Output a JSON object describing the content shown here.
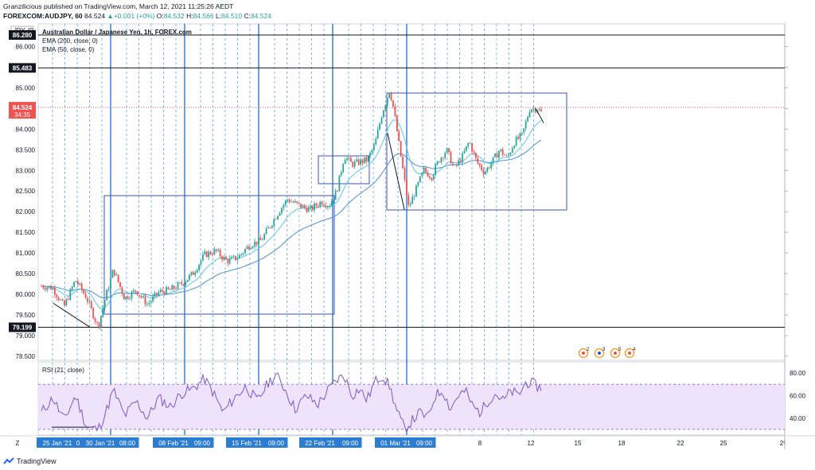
{
  "header": {
    "line1": "Granzilicious published on TradingView.com, March 12, 2021 11:25:26 AEDT",
    "symbol": "FOREXCOM:AUDJPY, 60",
    "last": "84.524",
    "change_arrow": "▲",
    "change": "+0.001 (+0%)",
    "o_label": "O:",
    "o": "84.532",
    "h_label": "H:",
    "h": "84.566",
    "l_label": "L:",
    "l": "84.510",
    "c_label": "C:",
    "c": "84.524"
  },
  "legend": {
    "title": "Australian Dollar / Japanese Yen, 1h, FOREX.com",
    "ema200": "EMA (200, close, 0)",
    "ema50": "EMA (50, close, 0)",
    "rsi": "RSI (21, close)"
  },
  "price_axis": {
    "currency": "JPY",
    "currency_tag": "I0",
    "marker_high": "86.280",
    "marker_mid": "85.483",
    "marker_low": "79.199",
    "current_price": "84.524",
    "countdown": "34:35"
  },
  "rsi_axis": {
    "ticks": [
      "80.00",
      "60.00",
      "40.00"
    ]
  },
  "colors": {
    "up": "#26a69a",
    "down": "#ef5350",
    "ema50": "#5ec8e0",
    "ema200": "#4d8fd6",
    "rsi": "#7e57c2",
    "rsi_band": "#efe3fb",
    "box": "#3f51b5",
    "vline": "#2b7cd3",
    "vline_dashed": "#3b8fd6",
    "price_tag": "#ef5350",
    "hline": "#131722"
  },
  "events": [
    "2",
    "3",
    "5",
    "4"
  ],
  "footer": {
    "brand": "TradingView"
  },
  "chart_data": {
    "type": "candlestick",
    "title": "Australian Dollar / Japanese Yen, 1h, FOREX.com",
    "y_ticks": [
      86.0,
      85.5,
      85.0,
      84.5,
      84.0,
      83.5,
      83.0,
      82.5,
      82.0,
      81.5,
      81.0,
      80.5,
      80.0,
      79.5,
      79.0,
      78.5
    ],
    "ylim": [
      78.4,
      86.55
    ],
    "x_ticks": [
      {
        "label": "Z",
        "highlight": false
      },
      {
        "label": "25 Jan '21",
        "highlight": true
      },
      {
        "label": "0⁽",
        "highlight": true
      },
      {
        "label": "30 Jan '21",
        "highlight": true
      },
      {
        "label": "08:00",
        "highlight": true
      },
      {
        "label": "08 Feb '21",
        "highlight": true
      },
      {
        "label": "09:00",
        "highlight": true
      },
      {
        "label": "15 Feb '21",
        "highlight": true
      },
      {
        "label": "09:00",
        "highlight": true
      },
      {
        "label": "22 Feb '21",
        "highlight": true
      },
      {
        "label": "09:00",
        "highlight": true
      },
      {
        "label": "01 Mar '21",
        "highlight": true
      },
      {
        "label": "09:00",
        "highlight": true
      },
      {
        "label": "8",
        "highlight": false
      },
      {
        "label": "12",
        "highlight": false
      },
      {
        "label": "15",
        "highlight": false
      },
      {
        "label": "18",
        "highlight": false
      },
      {
        "label": "22",
        "highlight": false
      },
      {
        "label": "25",
        "highlight": false
      },
      {
        "label": "2⁽",
        "highlight": false
      }
    ],
    "horizontal_levels": [
      86.28,
      85.483,
      79.199
    ],
    "current_price": 84.524,
    "price_path": [
      [
        0,
        80.2
      ],
      [
        3,
        80.15
      ],
      [
        6,
        79.7
      ],
      [
        9,
        80.35
      ],
      [
        12,
        79.9
      ],
      [
        15,
        79.2
      ],
      [
        17,
        79.95
      ],
      [
        19,
        80.6
      ],
      [
        22,
        79.9
      ],
      [
        25,
        80.1
      ],
      [
        28,
        79.75
      ],
      [
        31,
        80.05
      ],
      [
        34,
        80.1
      ],
      [
        37,
        80.25
      ],
      [
        40,
        80.5
      ],
      [
        43,
        80.95
      ],
      [
        46,
        81.05
      ],
      [
        49,
        80.8
      ],
      [
        52,
        80.9
      ],
      [
        55,
        81.2
      ],
      [
        58,
        81.3
      ],
      [
        61,
        81.75
      ],
      [
        63,
        82.05
      ],
      [
        65,
        82.3
      ],
      [
        68,
        82.15
      ],
      [
        71,
        82.05
      ],
      [
        74,
        82.25
      ],
      [
        76,
        82.15
      ],
      [
        78,
        82.5
      ],
      [
        80,
        83.35
      ],
      [
        82,
        83.15
      ],
      [
        84,
        83.2
      ],
      [
        86,
        83.25
      ],
      [
        88,
        83.6
      ],
      [
        90,
        84.4
      ],
      [
        92,
        84.95
      ],
      [
        93,
        84.5
      ],
      [
        95,
        83.3
      ],
      [
        97,
        82.1
      ],
      [
        99,
        82.55
      ],
      [
        101,
        83.0
      ],
      [
        103,
        82.85
      ],
      [
        105,
        83.25
      ],
      [
        107,
        83.5
      ],
      [
        109,
        83.05
      ],
      [
        111,
        83.3
      ],
      [
        113,
        83.7
      ],
      [
        115,
        83.2
      ],
      [
        117,
        82.95
      ],
      [
        119,
        83.2
      ],
      [
        121,
        83.5
      ],
      [
        123,
        83.3
      ],
      [
        125,
        83.7
      ],
      [
        127,
        83.85
      ],
      [
        129,
        84.5
      ],
      [
        131,
        84.5
      ],
      [
        132,
        84.4
      ]
    ],
    "rsi": {
      "name": "RSI (21, close)",
      "ylim": [
        25,
        90
      ],
      "ticks": [
        80,
        60,
        40
      ],
      "band": [
        30,
        70
      ],
      "path": [
        [
          0,
          45
        ],
        [
          3,
          58
        ],
        [
          6,
          38
        ],
        [
          9,
          60
        ],
        [
          12,
          32
        ],
        [
          15,
          30
        ],
        [
          17,
          45
        ],
        [
          19,
          65
        ],
        [
          22,
          42
        ],
        [
          25,
          55
        ],
        [
          28,
          40
        ],
        [
          31,
          58
        ],
        [
          34,
          50
        ],
        [
          37,
          62
        ],
        [
          40,
          66
        ],
        [
          43,
          75
        ],
        [
          45,
          65
        ],
        [
          48,
          45
        ],
        [
          51,
          58
        ],
        [
          54,
          68
        ],
        [
          57,
          55
        ],
        [
          60,
          72
        ],
        [
          62,
          78
        ],
        [
          64,
          68
        ],
        [
          67,
          48
        ],
        [
          70,
          60
        ],
        [
          73,
          52
        ],
        [
          76,
          66
        ],
        [
          78,
          74
        ],
        [
          80,
          78
        ],
        [
          82,
          60
        ],
        [
          84,
          66
        ],
        [
          86,
          56
        ],
        [
          88,
          72
        ],
        [
          90,
          78
        ],
        [
          92,
          68
        ],
        [
          94,
          45
        ],
        [
          96,
          30
        ],
        [
          98,
          38
        ],
        [
          100,
          45
        ],
        [
          102,
          40
        ],
        [
          104,
          60
        ],
        [
          106,
          65
        ],
        [
          108,
          48
        ],
        [
          110,
          60
        ],
        [
          112,
          64
        ],
        [
          114,
          50
        ],
        [
          116,
          45
        ],
        [
          118,
          56
        ],
        [
          120,
          62
        ],
        [
          122,
          55
        ],
        [
          124,
          64
        ],
        [
          126,
          60
        ],
        [
          128,
          72
        ],
        [
          130,
          70
        ],
        [
          132,
          66
        ]
      ]
    }
  }
}
